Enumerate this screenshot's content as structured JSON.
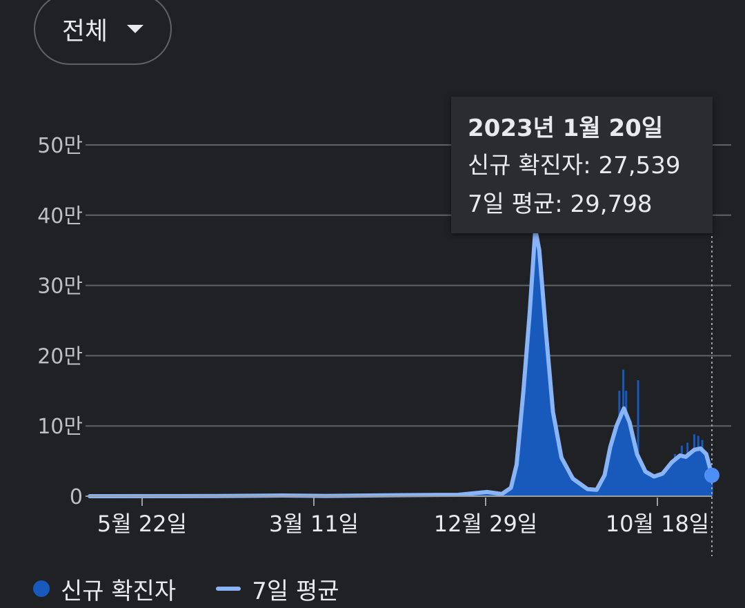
{
  "filter": {
    "label": "전체"
  },
  "tooltip": {
    "date": "2023년 1월 20일",
    "new_cases_label": "신규 확진자",
    "new_cases_value": "27,539",
    "avg_label": "7일 평균",
    "avg_value": "29,798"
  },
  "legend": {
    "new_cases": "신규 확진자",
    "avg": "7일 평균"
  },
  "colors": {
    "background": "#202124",
    "bars": "#185abc",
    "average_line": "#8ab4f8",
    "grid": "#5f6368"
  },
  "chart_data": {
    "type": "area",
    "y_ticks": [
      {
        "value": 0,
        "label": "0"
      },
      {
        "value": 100000,
        "label": "10만"
      },
      {
        "value": 200000,
        "label": "20만"
      },
      {
        "value": 300000,
        "label": "30만"
      },
      {
        "value": 400000,
        "label": "40만"
      },
      {
        "value": 500000,
        "label": "50만"
      }
    ],
    "ylim": [
      0,
      500000
    ],
    "x_ticks": [
      "5월 22일",
      "3월 11일",
      "12월 29일",
      "10월 18일"
    ],
    "grid": true,
    "legend_position": "bottom-left",
    "series": [
      {
        "name": "신규 확진자",
        "kind": "bars"
      },
      {
        "name": "7일 평균",
        "kind": "line"
      }
    ],
    "seven_day_average": [
      [
        "2020-01-20",
        0
      ],
      [
        "2020-05-22",
        100
      ],
      [
        "2020-08-28",
        300
      ],
      [
        "2020-12-25",
        1000
      ],
      [
        "2021-03-11",
        400
      ],
      [
        "2021-07-25",
        1500
      ],
      [
        "2021-10-30",
        2000
      ],
      [
        "2021-12-20",
        6000
      ],
      [
        "2021-12-29",
        5000
      ],
      [
        "2022-01-15",
        3000
      ],
      [
        "2022-01-31",
        12000
      ],
      [
        "2022-02-10",
        45000
      ],
      [
        "2022-02-22",
        150000
      ],
      [
        "2022-03-05",
        260000
      ],
      [
        "2022-03-15",
        380000
      ],
      [
        "2022-03-22",
        350000
      ],
      [
        "2022-04-02",
        240000
      ],
      [
        "2022-04-15",
        120000
      ],
      [
        "2022-04-30",
        55000
      ],
      [
        "2022-05-20",
        25000
      ],
      [
        "2022-06-15",
        10000
      ],
      [
        "2022-07-01",
        9000
      ],
      [
        "2022-07-15",
        30000
      ],
      [
        "2022-07-25",
        70000
      ],
      [
        "2022-08-05",
        100000
      ],
      [
        "2022-08-18",
        125000
      ],
      [
        "2022-08-28",
        105000
      ],
      [
        "2022-09-10",
        60000
      ],
      [
        "2022-09-25",
        35000
      ],
      [
        "2022-10-10",
        28000
      ],
      [
        "2022-10-25",
        32000
      ],
      [
        "2022-11-10",
        48000
      ],
      [
        "2022-11-25",
        58000
      ],
      [
        "2022-12-05",
        56000
      ],
      [
        "2022-12-20",
        66000
      ],
      [
        "2022-12-31",
        68000
      ],
      [
        "2023-01-10",
        60000
      ],
      [
        "2023-01-20",
        29798
      ]
    ],
    "daily_spikes": [
      [
        "2022-02-28",
        170000
      ],
      [
        "2022-03-17",
        410000
      ],
      [
        "2022-04-10",
        110000
      ],
      [
        "2022-08-10",
        150000
      ],
      [
        "2022-08-17",
        180000
      ],
      [
        "2022-08-22",
        150000
      ],
      [
        "2022-09-12",
        165000
      ],
      [
        "2022-11-16",
        60000
      ],
      [
        "2022-11-28",
        72000
      ],
      [
        "2022-12-08",
        76000
      ],
      [
        "2022-12-20",
        88000
      ],
      [
        "2022-12-27",
        86000
      ],
      [
        "2023-01-03",
        80000
      ],
      [
        "2023-01-20",
        27539
      ]
    ],
    "highlight": {
      "date": "2023-01-20",
      "new_cases": 27539,
      "avg": 29798
    }
  }
}
